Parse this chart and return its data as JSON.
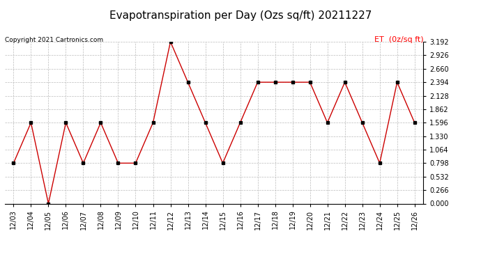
{
  "title": "Evapotranspiration per Day (Ozs sq/ft) 20211227",
  "copyright": "Copyright 2021 Cartronics.com",
  "legend_label": "ET  (0z/sq ft)",
  "dates": [
    "12/03",
    "12/04",
    "12/05",
    "12/06",
    "12/07",
    "12/08",
    "12/09",
    "12/10",
    "12/11",
    "12/12",
    "12/13",
    "12/14",
    "12/15",
    "12/16",
    "12/17",
    "12/18",
    "12/19",
    "12/20",
    "12/21",
    "12/22",
    "12/23",
    "12/24",
    "12/25",
    "12/26"
  ],
  "values": [
    0.798,
    1.596,
    0.0,
    1.596,
    0.798,
    1.596,
    0.798,
    0.798,
    1.596,
    3.192,
    2.394,
    1.596,
    0.798,
    1.596,
    2.394,
    2.394,
    2.394,
    2.394,
    1.596,
    2.394,
    1.596,
    0.798,
    2.394,
    1.596
  ],
  "ylim": [
    0.0,
    3.192
  ],
  "yticks": [
    0.0,
    0.266,
    0.532,
    0.798,
    1.064,
    1.33,
    1.596,
    1.862,
    2.128,
    2.394,
    2.66,
    2.926,
    3.192
  ],
  "line_color": "#cc0000",
  "marker_color": "#000000",
  "grid_color": "#bbbbbb",
  "background_color": "#ffffff",
  "title_fontsize": 11,
  "legend_fontsize": 8,
  "tick_fontsize": 7,
  "copyright_fontsize": 6.5
}
